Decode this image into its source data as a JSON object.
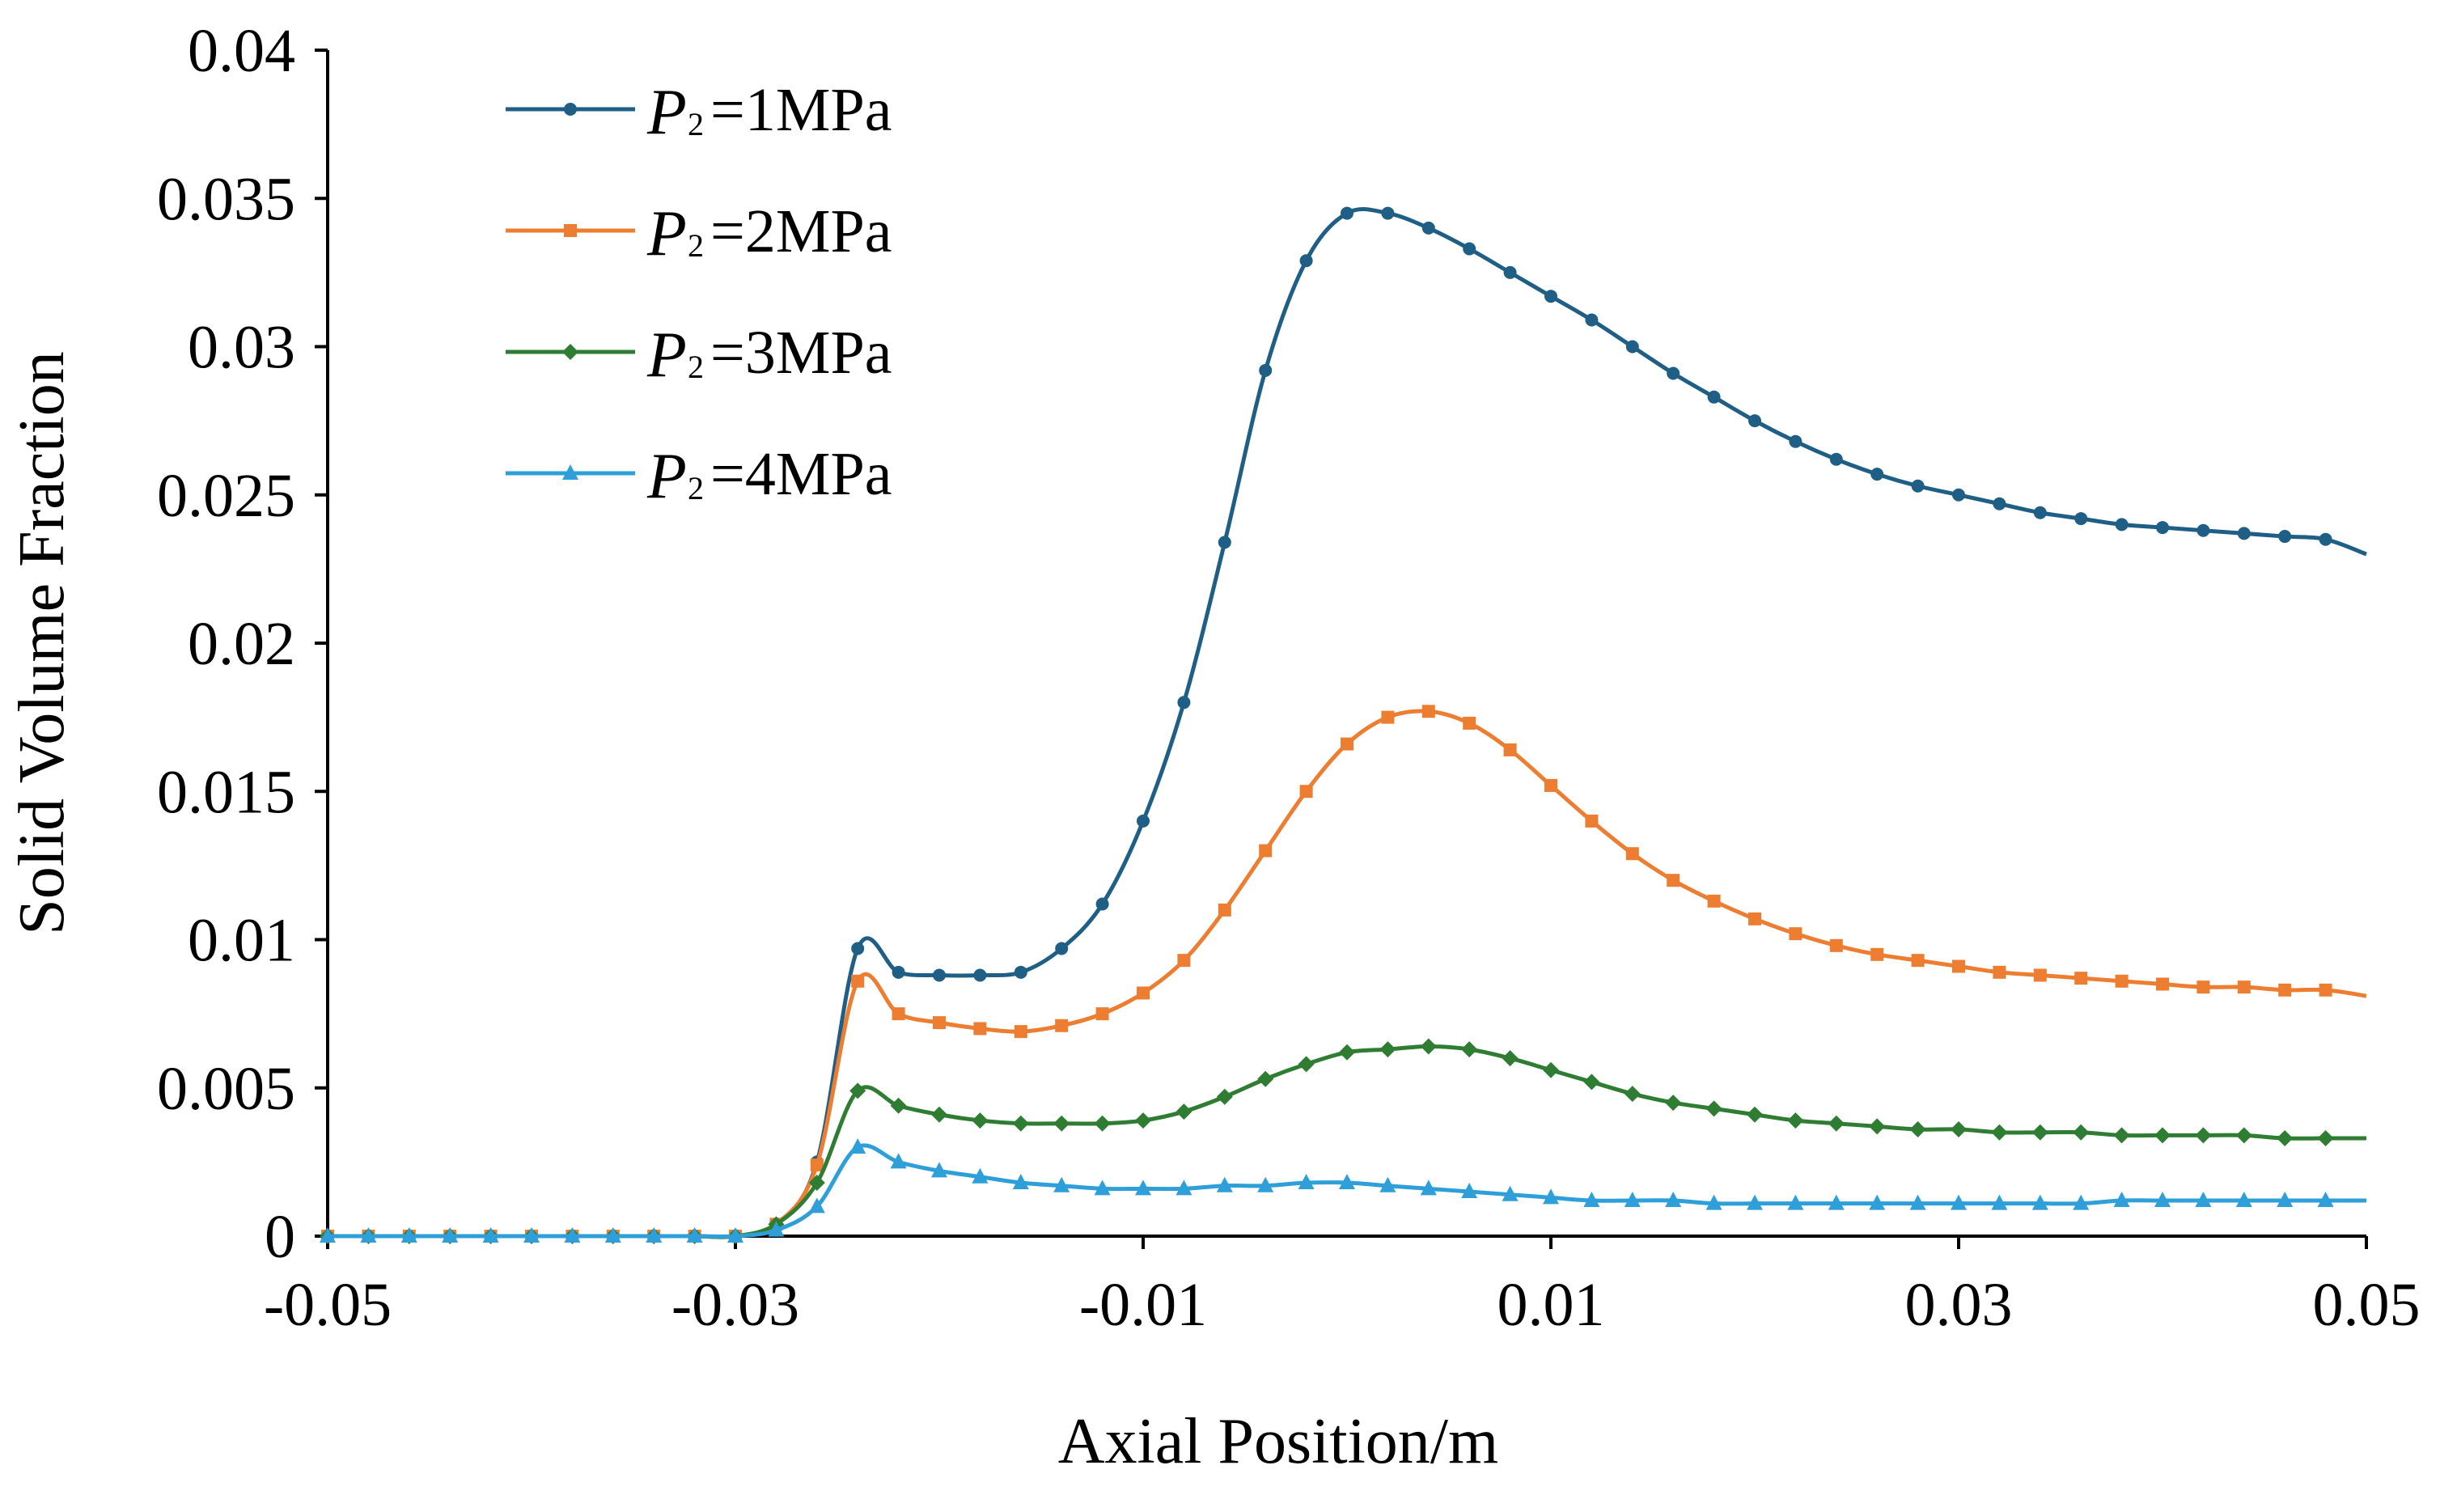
{
  "chart_data": {
    "type": "line",
    "title": "",
    "xlabel": "Axial Position/m",
    "ylabel": "Solid Volume Fraction",
    "xlim": [
      -0.05,
      0.05
    ],
    "ylim": [
      0,
      0.04
    ],
    "x_ticks": [
      -0.05,
      -0.03,
      -0.01,
      0.01,
      0.03,
      0.05
    ],
    "x_tick_labels": [
      "-0.05",
      "-0.03",
      "-0.01",
      "0.01",
      "0.03",
      "0.05"
    ],
    "y_ticks": [
      0,
      0.005,
      0.01,
      0.015,
      0.02,
      0.025,
      0.03,
      0.035,
      0.04
    ],
    "y_tick_labels": [
      "0",
      "0.005",
      "0.01",
      "0.015",
      "0.02",
      "0.025",
      "0.03",
      "0.035",
      "0.04"
    ],
    "grid": false,
    "legend_position": "top-left",
    "series": [
      {
        "name": "P2=1MPa",
        "legend_symbol": "P",
        "legend_subscript": "2",
        "legend_value": "=1MPa",
        "color": "#1f5f86",
        "marker": "circle",
        "x": [
          -0.05,
          -0.048,
          -0.046,
          -0.044,
          -0.042,
          -0.04,
          -0.038,
          -0.036,
          -0.034,
          -0.032,
          -0.03,
          -0.028,
          -0.026,
          -0.024,
          -0.022,
          -0.02,
          -0.018,
          -0.016,
          -0.014,
          -0.012,
          -0.01,
          -0.008,
          -0.006,
          -0.004,
          -0.002,
          0,
          0.002,
          0.004,
          0.006,
          0.008,
          0.01,
          0.012,
          0.014,
          0.016,
          0.018,
          0.02,
          0.022,
          0.024,
          0.026,
          0.028,
          0.03,
          0.032,
          0.034,
          0.036,
          0.038,
          0.04,
          0.042,
          0.044,
          0.046,
          0.048,
          0.05
        ],
        "y": [
          0,
          0,
          0,
          0,
          0,
          0,
          0,
          0,
          0,
          0,
          0,
          0.0004,
          0.0025,
          0.0097,
          0.0089,
          0.0088,
          0.0088,
          0.0089,
          0.0097,
          0.0112,
          0.014,
          0.018,
          0.0234,
          0.0292,
          0.0329,
          0.0345,
          0.0345,
          0.034,
          0.0333,
          0.0325,
          0.0317,
          0.0309,
          0.03,
          0.0291,
          0.0283,
          0.0275,
          0.0268,
          0.0262,
          0.0257,
          0.0253,
          0.025,
          0.0247,
          0.0244,
          0.0242,
          0.024,
          0.0239,
          0.0238,
          0.0237,
          0.0236,
          0.0235,
          0.023
        ]
      },
      {
        "name": "P2=2MPa",
        "legend_symbol": "P",
        "legend_subscript": "2",
        "legend_value": "=2MPa",
        "color": "#ed7d31",
        "marker": "square",
        "x": [
          -0.05,
          -0.048,
          -0.046,
          -0.044,
          -0.042,
          -0.04,
          -0.038,
          -0.036,
          -0.034,
          -0.032,
          -0.03,
          -0.028,
          -0.026,
          -0.024,
          -0.022,
          -0.02,
          -0.018,
          -0.016,
          -0.014,
          -0.012,
          -0.01,
          -0.008,
          -0.006,
          -0.004,
          -0.002,
          0,
          0.002,
          0.004,
          0.006,
          0.008,
          0.01,
          0.012,
          0.014,
          0.016,
          0.018,
          0.02,
          0.022,
          0.024,
          0.026,
          0.028,
          0.03,
          0.032,
          0.034,
          0.036,
          0.038,
          0.04,
          0.042,
          0.044,
          0.046,
          0.048,
          0.05
        ],
        "y": [
          0,
          0,
          0,
          0,
          0,
          0,
          0,
          0,
          0,
          0,
          0,
          0.0004,
          0.0024,
          0.0086,
          0.0075,
          0.0072,
          0.007,
          0.0069,
          0.0071,
          0.0075,
          0.0082,
          0.0093,
          0.011,
          0.013,
          0.015,
          0.0166,
          0.0175,
          0.0177,
          0.0173,
          0.0164,
          0.0152,
          0.014,
          0.0129,
          0.012,
          0.0113,
          0.0107,
          0.0102,
          0.0098,
          0.0095,
          0.0093,
          0.0091,
          0.0089,
          0.0088,
          0.0087,
          0.0086,
          0.0085,
          0.0084,
          0.0084,
          0.0083,
          0.0083,
          0.0081
        ]
      },
      {
        "name": "P2=3MPa",
        "legend_symbol": "P",
        "legend_subscript": "2",
        "legend_value": "=3MPa",
        "color": "#2e7d32",
        "marker": "diamond",
        "x": [
          -0.05,
          -0.048,
          -0.046,
          -0.044,
          -0.042,
          -0.04,
          -0.038,
          -0.036,
          -0.034,
          -0.032,
          -0.03,
          -0.028,
          -0.026,
          -0.024,
          -0.022,
          -0.02,
          -0.018,
          -0.016,
          -0.014,
          -0.012,
          -0.01,
          -0.008,
          -0.006,
          -0.004,
          -0.002,
          0,
          0.002,
          0.004,
          0.006,
          0.008,
          0.01,
          0.012,
          0.014,
          0.016,
          0.018,
          0.02,
          0.022,
          0.024,
          0.026,
          0.028,
          0.03,
          0.032,
          0.034,
          0.036,
          0.038,
          0.04,
          0.042,
          0.044,
          0.046,
          0.048,
          0.05
        ],
        "y": [
          0,
          0,
          0,
          0,
          0,
          0,
          0,
          0,
          0,
          0,
          0,
          0.0004,
          0.0018,
          0.0049,
          0.0044,
          0.0041,
          0.0039,
          0.0038,
          0.0038,
          0.0038,
          0.0039,
          0.0042,
          0.0047,
          0.0053,
          0.0058,
          0.0062,
          0.0063,
          0.0064,
          0.0063,
          0.006,
          0.0056,
          0.0052,
          0.0048,
          0.0045,
          0.0043,
          0.0041,
          0.0039,
          0.0038,
          0.0037,
          0.0036,
          0.0036,
          0.0035,
          0.0035,
          0.0035,
          0.0034,
          0.0034,
          0.0034,
          0.0034,
          0.0033,
          0.0033,
          0.0033
        ]
      },
      {
        "name": "P2=4MPa",
        "legend_symbol": "P",
        "legend_subscript": "2",
        "legend_value": "=4MPa",
        "color": "#2e9fd8",
        "marker": "triangle",
        "x": [
          -0.05,
          -0.048,
          -0.046,
          -0.044,
          -0.042,
          -0.04,
          -0.038,
          -0.036,
          -0.034,
          -0.032,
          -0.03,
          -0.028,
          -0.026,
          -0.024,
          -0.022,
          -0.02,
          -0.018,
          -0.016,
          -0.014,
          -0.012,
          -0.01,
          -0.008,
          -0.006,
          -0.004,
          -0.002,
          0,
          0.002,
          0.004,
          0.006,
          0.008,
          0.01,
          0.012,
          0.014,
          0.016,
          0.018,
          0.02,
          0.022,
          0.024,
          0.026,
          0.028,
          0.03,
          0.032,
          0.034,
          0.036,
          0.038,
          0.04,
          0.042,
          0.044,
          0.046,
          0.048,
          0.05
        ],
        "y": [
          0,
          0,
          0,
          0,
          0,
          0,
          0,
          0,
          0,
          0,
          0,
          0.0002,
          0.001,
          0.003,
          0.0025,
          0.0022,
          0.002,
          0.0018,
          0.0017,
          0.0016,
          0.0016,
          0.0016,
          0.0017,
          0.0017,
          0.0018,
          0.0018,
          0.0017,
          0.0016,
          0.0015,
          0.0014,
          0.0013,
          0.0012,
          0.0012,
          0.0012,
          0.0011,
          0.0011,
          0.0011,
          0.0011,
          0.0011,
          0.0011,
          0.0011,
          0.0011,
          0.0011,
          0.0011,
          0.0012,
          0.0012,
          0.0012,
          0.0012,
          0.0012,
          0.0012,
          0.0012
        ]
      }
    ]
  }
}
